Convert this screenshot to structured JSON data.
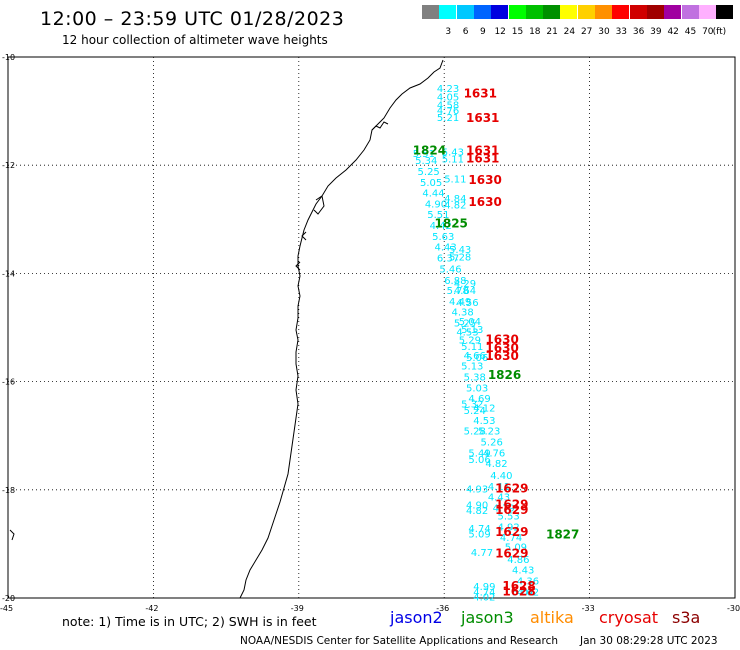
{
  "header": {
    "title": "12:00 – 23:59 UTC 01/28/2023",
    "subtitle": "12 hour collection of altimeter wave heights"
  },
  "color_scale": {
    "unit_label": "(ft)",
    "bins": [
      {
        "color": "#808080",
        "label": ""
      },
      {
        "color": "#00ffff",
        "label": "3"
      },
      {
        "color": "#00c8ff",
        "label": "6"
      },
      {
        "color": "#0064ff",
        "label": "9"
      },
      {
        "color": "#0000e0",
        "label": "12"
      },
      {
        "color": "#00ff00",
        "label": "15"
      },
      {
        "color": "#00c000",
        "label": "18"
      },
      {
        "color": "#009000",
        "label": "21"
      },
      {
        "color": "#ffff00",
        "label": "24"
      },
      {
        "color": "#ffd000",
        "label": "27"
      },
      {
        "color": "#ff9000",
        "label": "30"
      },
      {
        "color": "#ff0000",
        "label": "33"
      },
      {
        "color": "#d00000",
        "label": "36"
      },
      {
        "color": "#a00000",
        "label": "39"
      },
      {
        "color": "#a000a0",
        "label": "42"
      },
      {
        "color": "#c070e0",
        "label": "45"
      },
      {
        "color": "#ffb0ff",
        "label": "70"
      },
      {
        "color": "#000000",
        "label": ""
      }
    ]
  },
  "map": {
    "lat_labels": [
      "-10",
      "-12",
      "-14",
      "-16",
      "-18",
      "-20"
    ],
    "lon_labels": [
      "-45",
      "-42",
      "-39",
      "-36",
      "-33",
      "-30"
    ],
    "wave_color": "#00e6ff",
    "wave_heights": [
      {
        "lon": -36.15,
        "lat": -10.65,
        "v": "4.23"
      },
      {
        "lon": -36.15,
        "lat": -10.8,
        "v": "4.05"
      },
      {
        "lon": -36.15,
        "lat": -10.95,
        "v": "4.58"
      },
      {
        "lon": -36.15,
        "lat": -11.05,
        "v": "4.76"
      },
      {
        "lon": -36.15,
        "lat": -11.18,
        "v": "5.21"
      },
      {
        "lon": -36.65,
        "lat": -11.85,
        "v": "5.51"
      },
      {
        "lon": -36.05,
        "lat": -11.82,
        "v": "5.43"
      },
      {
        "lon": -36.05,
        "lat": -11.95,
        "v": "5.11"
      },
      {
        "lon": -36.6,
        "lat": -11.98,
        "v": "5.34"
      },
      {
        "lon": -36.55,
        "lat": -12.18,
        "v": "5.25"
      },
      {
        "lon": -36.5,
        "lat": -12.38,
        "v": "5.05"
      },
      {
        "lon": -36.0,
        "lat": -12.32,
        "v": "5.11"
      },
      {
        "lon": -36.45,
        "lat": -12.58,
        "v": "4.44"
      },
      {
        "lon": -36.4,
        "lat": -12.78,
        "v": "4.90"
      },
      {
        "lon": -36.0,
        "lat": -12.68,
        "v": "4.84"
      },
      {
        "lon": -36.0,
        "lat": -12.8,
        "v": "4.82"
      },
      {
        "lon": -36.35,
        "lat": -12.98,
        "v": "5.51"
      },
      {
        "lon": -36.3,
        "lat": -13.18,
        "v": "4.42"
      },
      {
        "lon": -36.25,
        "lat": -13.38,
        "v": "5.63"
      },
      {
        "lon": -36.2,
        "lat": -13.58,
        "v": "4.43"
      },
      {
        "lon": -35.9,
        "lat": -13.62,
        "v": "5.43"
      },
      {
        "lon": -36.15,
        "lat": -13.78,
        "v": "6.37"
      },
      {
        "lon": -35.9,
        "lat": -13.76,
        "v": "5.28"
      },
      {
        "lon": -36.1,
        "lat": -13.98,
        "v": "5.46"
      },
      {
        "lon": -36.0,
        "lat": -14.2,
        "v": "6.88"
      },
      {
        "lon": -35.8,
        "lat": -14.25,
        "v": "4.29"
      },
      {
        "lon": -35.95,
        "lat": -14.38,
        "v": "5.78"
      },
      {
        "lon": -35.8,
        "lat": -14.38,
        "v": "4.64"
      },
      {
        "lon": -35.9,
        "lat": -14.58,
        "v": "4.49"
      },
      {
        "lon": -35.75,
        "lat": -14.6,
        "v": "4.56"
      },
      {
        "lon": -35.85,
        "lat": -14.78,
        "v": "4.38"
      },
      {
        "lon": -35.8,
        "lat": -14.98,
        "v": "5.25"
      },
      {
        "lon": -35.7,
        "lat": -14.95,
        "v": "5.04"
      },
      {
        "lon": -35.75,
        "lat": -15.15,
        "v": "4.53"
      },
      {
        "lon": -35.65,
        "lat": -15.1,
        "v": "5.13"
      },
      {
        "lon": -35.7,
        "lat": -15.3,
        "v": "5.29"
      },
      {
        "lon": -35.65,
        "lat": -15.42,
        "v": "5.11"
      },
      {
        "lon": -35.6,
        "lat": -15.58,
        "v": "4.66"
      },
      {
        "lon": -35.55,
        "lat": -15.62,
        "v": "5.06"
      },
      {
        "lon": -35.65,
        "lat": -15.78,
        "v": "5.13"
      },
      {
        "lon": -35.6,
        "lat": -15.98,
        "v": "5.38"
      },
      {
        "lon": -35.55,
        "lat": -16.18,
        "v": "5.03"
      },
      {
        "lon": -35.5,
        "lat": -16.38,
        "v": "4.69"
      },
      {
        "lon": -35.65,
        "lat": -16.48,
        "v": "5.32"
      },
      {
        "lon": -35.4,
        "lat": -16.55,
        "v": "4.12"
      },
      {
        "lon": -35.6,
        "lat": -16.6,
        "v": "5.24"
      },
      {
        "lon": -35.4,
        "lat": -16.78,
        "v": "4.53"
      },
      {
        "lon": -35.6,
        "lat": -16.98,
        "v": "5.28"
      },
      {
        "lon": -35.3,
        "lat": -16.98,
        "v": "5.23"
      },
      {
        "lon": -35.25,
        "lat": -17.18,
        "v": "5.26"
      },
      {
        "lon": -35.5,
        "lat": -17.38,
        "v": "5.49"
      },
      {
        "lon": -35.2,
        "lat": -17.38,
        "v": "4.76"
      },
      {
        "lon": -35.5,
        "lat": -17.5,
        "v": "5.06"
      },
      {
        "lon": -35.15,
        "lat": -17.58,
        "v": "4.82"
      },
      {
        "lon": -35.05,
        "lat": -17.8,
        "v": "4.40"
      },
      {
        "lon": -35.1,
        "lat": -18.0,
        "v": "4.11"
      },
      {
        "lon": -35.55,
        "lat": -18.05,
        "v": "4.93"
      },
      {
        "lon": -35.1,
        "lat": -18.2,
        "v": "4.43"
      },
      {
        "lon": -35.55,
        "lat": -18.35,
        "v": "4.90"
      },
      {
        "lon": -35.0,
        "lat": -18.4,
        "v": "4.79"
      },
      {
        "lon": -35.55,
        "lat": -18.45,
        "v": "4.82"
      },
      {
        "lon": -34.9,
        "lat": -18.55,
        "v": "5.53"
      },
      {
        "lon": -34.9,
        "lat": -18.75,
        "v": "4.92"
      },
      {
        "lon": -35.5,
        "lat": -18.78,
        "v": "4.74"
      },
      {
        "lon": -35.5,
        "lat": -18.88,
        "v": "5.09"
      },
      {
        "lon": -34.85,
        "lat": -18.95,
        "v": "4.74"
      },
      {
        "lon": -34.75,
        "lat": -19.12,
        "v": "5.09"
      },
      {
        "lon": -35.45,
        "lat": -19.22,
        "v": "4.77"
      },
      {
        "lon": -34.7,
        "lat": -19.35,
        "v": "4.86"
      },
      {
        "lon": -34.6,
        "lat": -19.55,
        "v": "4.43"
      },
      {
        "lon": -34.5,
        "lat": -19.75,
        "v": "4.36"
      },
      {
        "lon": -35.4,
        "lat": -19.85,
        "v": "4.99"
      },
      {
        "lon": -35.4,
        "lat": -19.95,
        "v": "4.74"
      },
      {
        "lon": -34.6,
        "lat": -19.95,
        "v": "5.02"
      },
      {
        "lon": -34.5,
        "lat": -19.95,
        "v": "4.62"
      },
      {
        "lon": -35.4,
        "lat": -20.05,
        "v": "4.02"
      }
    ],
    "revolutions": [
      {
        "lon": -35.6,
        "lat": -10.75,
        "t": "1631",
        "c": "#e60000"
      },
      {
        "lon": -35.55,
        "lat": -11.2,
        "t": "1631",
        "c": "#e60000"
      },
      {
        "lon": -36.65,
        "lat": -11.8,
        "t": "1824",
        "c": "#008c00"
      },
      {
        "lon": -35.55,
        "lat": -11.8,
        "t": "1631",
        "c": "#e60000"
      },
      {
        "lon": -35.55,
        "lat": -11.95,
        "t": "1631",
        "c": "#e60000"
      },
      {
        "lon": -35.5,
        "lat": -12.35,
        "t": "1630",
        "c": "#e60000"
      },
      {
        "lon": -35.5,
        "lat": -12.75,
        "t": "1630",
        "c": "#e60000"
      },
      {
        "lon": -36.2,
        "lat": -13.15,
        "t": "1825",
        "c": "#008c00"
      },
      {
        "lon": -35.15,
        "lat": -15.3,
        "t": "1630",
        "c": "#e60000"
      },
      {
        "lon": -35.15,
        "lat": -15.45,
        "t": "1630",
        "c": "#e60000"
      },
      {
        "lon": -35.15,
        "lat": -15.6,
        "t": "1630",
        "c": "#e60000"
      },
      {
        "lon": -35.1,
        "lat": -15.95,
        "t": "1826",
        "c": "#008c00"
      },
      {
        "lon": -34.95,
        "lat": -18.05,
        "t": "1629",
        "c": "#e60000"
      },
      {
        "lon": -34.95,
        "lat": -18.35,
        "t": "1629",
        "c": "#e60000"
      },
      {
        "lon": -34.95,
        "lat": -18.45,
        "t": "1629",
        "c": "#e60000"
      },
      {
        "lon": -34.95,
        "lat": -18.85,
        "t": "1629",
        "c": "#e60000"
      },
      {
        "lon": -33.9,
        "lat": -18.9,
        "t": "1827",
        "c": "#008c00"
      },
      {
        "lon": -34.95,
        "lat": -19.25,
        "t": "1629",
        "c": "#e60000"
      },
      {
        "lon": -34.8,
        "lat": -19.85,
        "t": "1628",
        "c": "#e60000"
      },
      {
        "lon": -34.8,
        "lat": -19.95,
        "t": "1628",
        "c": "#e60000"
      }
    ]
  },
  "footer": {
    "note": "note:  1) Time is in UTC;  2) SWH is in feet",
    "satellites": [
      {
        "name": "jason2",
        "color": "#0000e6"
      },
      {
        "name": "jason3",
        "color": "#008c00"
      },
      {
        "name": "altika",
        "color": "#ff8c00"
      },
      {
        "name": "cryosat",
        "color": "#e60000"
      },
      {
        "name": "s3a",
        "color": "#8c0000"
      }
    ],
    "credit": "NOAA/NESDIS Center for Satellite Applications and Research",
    "timestamp": "Jan 30 08:29:28 UTC 2023"
  }
}
